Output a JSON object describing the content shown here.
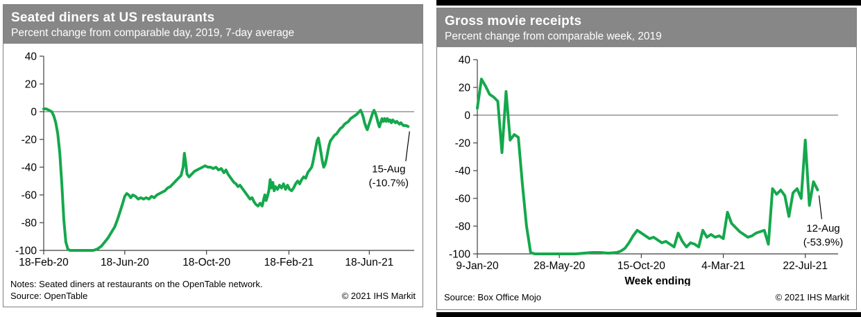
{
  "colors": {
    "line_green": "#14A84C",
    "header_gray": "#878787",
    "border_gray": "#7F7F7F",
    "zero_line": "#7F7F7F",
    "axis": "#3F3F3F",
    "annotation_text": "#000000"
  },
  "chart_data": [
    {
      "type": "line",
      "title": "Seated diners at US restaurants",
      "subtitle": "Percent change from comparable day, 2019, 7-day average",
      "x_unit": "days since 18-Feb-2020",
      "ylim": [
        -100,
        40
      ],
      "yticks": [
        40,
        20,
        0,
        -20,
        -40,
        -60,
        -80,
        -100
      ],
      "x_axis_max": 553,
      "xticks": [
        {
          "x": 0,
          "label": "18-Feb-20"
        },
        {
          "x": 121,
          "label": "18-Jun-20"
        },
        {
          "x": 243,
          "label": "18-Oct-20"
        },
        {
          "x": 366,
          "label": "18-Feb-21"
        },
        {
          "x": 486,
          "label": "18-Jun-21"
        }
      ],
      "annotation": {
        "lines": [
          "15-Aug",
          "(-10.7%)"
        ],
        "target_x": 544,
        "target_y": -10.7
      },
      "notes": "Notes: Seated diners at restaurants on the OpenTable network.",
      "source": "Source: OpenTable",
      "copyright": "© 2021 IHS Markit",
      "legend": "none",
      "points": [
        [
          0,
          2
        ],
        [
          4,
          2
        ],
        [
          8,
          1
        ],
        [
          12,
          0
        ],
        [
          15,
          -3
        ],
        [
          18,
          -8
        ],
        [
          21,
          -16
        ],
        [
          24,
          -30
        ],
        [
          27,
          -52
        ],
        [
          30,
          -78
        ],
        [
          33,
          -94
        ],
        [
          36,
          -99
        ],
        [
          39,
          -100
        ],
        [
          46,
          -100
        ],
        [
          53,
          -100
        ],
        [
          60,
          -100
        ],
        [
          67,
          -100
        ],
        [
          74,
          -100
        ],
        [
          80,
          -99
        ],
        [
          86,
          -97
        ],
        [
          91,
          -94
        ],
        [
          96,
          -91
        ],
        [
          101,
          -87
        ],
        [
          106,
          -83
        ],
        [
          110,
          -78
        ],
        [
          114,
          -72
        ],
        [
          118,
          -66
        ],
        [
          121,
          -61
        ],
        [
          124,
          -59
        ],
        [
          127,
          -60
        ],
        [
          130,
          -62
        ],
        [
          133,
          -60
        ],
        [
          137,
          -61
        ],
        [
          141,
          -63
        ],
        [
          145,
          -62
        ],
        [
          149,
          -63
        ],
        [
          153,
          -62
        ],
        [
          157,
          -63
        ],
        [
          161,
          -61
        ],
        [
          165,
          -62
        ],
        [
          169,
          -60
        ],
        [
          173,
          -59
        ],
        [
          177,
          -58
        ],
        [
          181,
          -57
        ],
        [
          185,
          -55
        ],
        [
          189,
          -54
        ],
        [
          193,
          -52
        ],
        [
          197,
          -50
        ],
        [
          201,
          -48
        ],
        [
          205,
          -46
        ],
        [
          208,
          -40
        ],
        [
          210,
          -30
        ],
        [
          212,
          -37
        ],
        [
          214,
          -45
        ],
        [
          217,
          -47
        ],
        [
          221,
          -45
        ],
        [
          225,
          -43
        ],
        [
          229,
          -42
        ],
        [
          233,
          -41
        ],
        [
          237,
          -40
        ],
        [
          241,
          -39
        ],
        [
          245,
          -40
        ],
        [
          249,
          -40
        ],
        [
          253,
          -41
        ],
        [
          257,
          -40
        ],
        [
          261,
          -42
        ],
        [
          265,
          -41
        ],
        [
          269,
          -44
        ],
        [
          272,
          -42
        ],
        [
          275,
          -45
        ],
        [
          278,
          -47
        ],
        [
          281,
          -49
        ],
        [
          284,
          -51
        ],
        [
          287,
          -52
        ],
        [
          290,
          -54
        ],
        [
          293,
          -53
        ],
        [
          296,
          -55
        ],
        [
          299,
          -57
        ],
        [
          302,
          -59
        ],
        [
          305,
          -61
        ],
        [
          308,
          -63
        ],
        [
          311,
          -62
        ],
        [
          314,
          -65
        ],
        [
          317,
          -67
        ],
        [
          320,
          -68
        ],
        [
          323,
          -66
        ],
        [
          326,
          -68
        ],
        [
          328,
          -64
        ],
        [
          330,
          -60
        ],
        [
          332,
          -64
        ],
        [
          334,
          -61
        ],
        [
          336,
          -57
        ],
        [
          338,
          -49
        ],
        [
          340,
          -55
        ],
        [
          342,
          -51
        ],
        [
          344,
          -57
        ],
        [
          346,
          -54
        ],
        [
          349,
          -56
        ],
        [
          352,
          -53
        ],
        [
          355,
          -55
        ],
        [
          358,
          -52
        ],
        [
          361,
          -56
        ],
        [
          364,
          -53
        ],
        [
          367,
          -56
        ],
        [
          370,
          -57
        ],
        [
          373,
          -55
        ],
        [
          376,
          -52
        ],
        [
          379,
          -50
        ],
        [
          382,
          -52
        ],
        [
          385,
          -49
        ],
        [
          388,
          -47
        ],
        [
          391,
          -48
        ],
        [
          394,
          -44
        ],
        [
          397,
          -42
        ],
        [
          400,
          -40
        ],
        [
          402,
          -36
        ],
        [
          404,
          -31
        ],
        [
          406,
          -26
        ],
        [
          408,
          -21
        ],
        [
          410,
          -19
        ],
        [
          412,
          -24
        ],
        [
          414,
          -30
        ],
        [
          416,
          -36
        ],
        [
          418,
          -40
        ],
        [
          420,
          -38
        ],
        [
          422,
          -34
        ],
        [
          424,
          -29
        ],
        [
          426,
          -24
        ],
        [
          428,
          -21
        ],
        [
          431,
          -19
        ],
        [
          434,
          -17
        ],
        [
          437,
          -16
        ],
        [
          440,
          -14
        ],
        [
          443,
          -12
        ],
        [
          446,
          -11
        ],
        [
          449,
          -9
        ],
        [
          452,
          -8
        ],
        [
          455,
          -7
        ],
        [
          458,
          -5
        ],
        [
          461,
          -4
        ],
        [
          464,
          -3
        ],
        [
          467,
          -2
        ],
        [
          469,
          -1
        ],
        [
          471,
          0
        ],
        [
          473,
          1
        ],
        [
          475,
          -1
        ],
        [
          477,
          -4
        ],
        [
          479,
          -8
        ],
        [
          481,
          -11
        ],
        [
          483,
          -13
        ],
        [
          485,
          -10
        ],
        [
          487,
          -7
        ],
        [
          489,
          -4
        ],
        [
          491,
          -1
        ],
        [
          493,
          1
        ],
        [
          495,
          -1
        ],
        [
          497,
          -4
        ],
        [
          499,
          -8
        ],
        [
          501,
          -11
        ],
        [
          503,
          -8
        ],
        [
          505,
          -5
        ],
        [
          507,
          -7
        ],
        [
          509,
          -5
        ],
        [
          511,
          -7
        ],
        [
          513,
          -5
        ],
        [
          515,
          -7
        ],
        [
          517,
          -6
        ],
        [
          519,
          -8
        ],
        [
          521,
          -6
        ],
        [
          523,
          -7
        ],
        [
          525,
          -8
        ],
        [
          527,
          -7
        ],
        [
          529,
          -8
        ],
        [
          531,
          -9
        ],
        [
          533,
          -8
        ],
        [
          535,
          -9
        ],
        [
          537,
          -10
        ],
        [
          539,
          -10
        ],
        [
          541,
          -10
        ],
        [
          544,
          -10.7
        ]
      ]
    },
    {
      "type": "line",
      "title": "Gross movie receipts",
      "subtitle": "Percent change from comparable week, 2019",
      "x_unit": "weeks since week ending 9-Jan-2020",
      "xaxis_title": "Week ending",
      "ylim": [
        -100,
        40
      ],
      "yticks": [
        40,
        20,
        0,
        -20,
        -40,
        -60,
        -80,
        -100
      ],
      "x_axis_max": 88,
      "xticks": [
        {
          "x": 0,
          "label": "9-Jan-20"
        },
        {
          "x": 20,
          "label": "28-May-20"
        },
        {
          "x": 40,
          "label": "15-Oct-20"
        },
        {
          "x": 60,
          "label": "4-Mar-21"
        },
        {
          "x": 80,
          "label": "22-Jul-21"
        }
      ],
      "annotation": {
        "lines": [
          "12-Aug",
          "(-53.9%)"
        ],
        "target_x": 83,
        "target_y": -53.9
      },
      "source": "Source: Box Office Mojo",
      "copyright": "© 2021 IHS Markit",
      "legend": "none",
      "points": [
        [
          0,
          5
        ],
        [
          1,
          26
        ],
        [
          2,
          21
        ],
        [
          3,
          15
        ],
        [
          4,
          13
        ],
        [
          5,
          10
        ],
        [
          6,
          -27
        ],
        [
          7,
          17
        ],
        [
          8,
          -18
        ],
        [
          9,
          -14
        ],
        [
          10,
          -16
        ],
        [
          11,
          -50
        ],
        [
          12,
          -80
        ],
        [
          13,
          -99
        ],
        [
          14,
          -100
        ],
        [
          16,
          -100
        ],
        [
          18,
          -100
        ],
        [
          20,
          -100
        ],
        [
          22,
          -100
        ],
        [
          24,
          -100
        ],
        [
          26,
          -99.5
        ],
        [
          28,
          -99
        ],
        [
          30,
          -99
        ],
        [
          32,
          -99.5
        ],
        [
          34,
          -99
        ],
        [
          35,
          -98
        ],
        [
          36,
          -96
        ],
        [
          37,
          -92
        ],
        [
          38,
          -87
        ],
        [
          39,
          -83
        ],
        [
          40,
          -85
        ],
        [
          41,
          -87
        ],
        [
          42,
          -89
        ],
        [
          43,
          -88
        ],
        [
          44,
          -90
        ],
        [
          45,
          -92
        ],
        [
          46,
          -91
        ],
        [
          47,
          -93
        ],
        [
          48,
          -95
        ],
        [
          49,
          -85
        ],
        [
          50,
          -91
        ],
        [
          51,
          -95
        ],
        [
          52,
          -92
        ],
        [
          53,
          -93
        ],
        [
          54,
          -95
        ],
        [
          55,
          -83
        ],
        [
          56,
          -88
        ],
        [
          57,
          -86
        ],
        [
          58,
          -88
        ],
        [
          59,
          -87
        ],
        [
          60,
          -89
        ],
        [
          61,
          -70
        ],
        [
          62,
          -78
        ],
        [
          63,
          -81
        ],
        [
          64,
          -84
        ],
        [
          65,
          -86
        ],
        [
          66,
          -88
        ],
        [
          67,
          -87
        ],
        [
          68,
          -85
        ],
        [
          69,
          -84
        ],
        [
          70,
          -83
        ],
        [
          71,
          -93
        ],
        [
          72,
          -53
        ],
        [
          73,
          -57
        ],
        [
          74,
          -54
        ],
        [
          75,
          -58
        ],
        [
          76,
          -73
        ],
        [
          77,
          -56
        ],
        [
          78,
          -53
        ],
        [
          79,
          -60
        ],
        [
          80,
          -18
        ],
        [
          81,
          -65
        ],
        [
          82,
          -48
        ],
        [
          83,
          -53.9
        ]
      ]
    }
  ]
}
